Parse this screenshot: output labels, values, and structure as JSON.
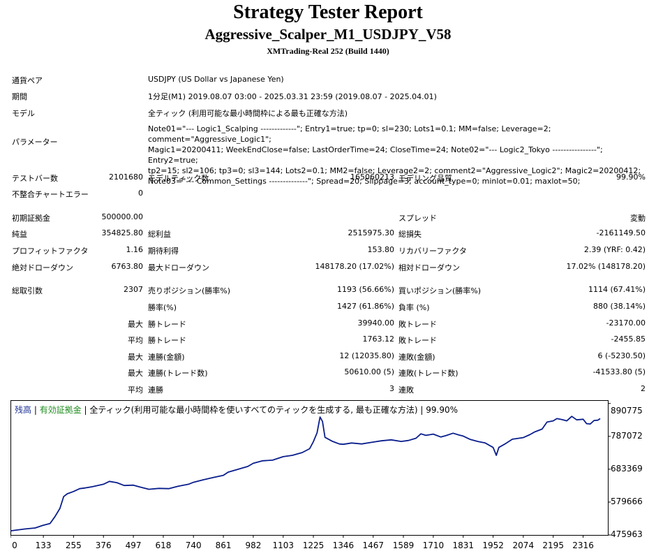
{
  "header": {
    "title": "Strategy Tester Report",
    "subtitle": "Aggressive_Scalper_M1_USDJPY_V58",
    "server": "XMTrading-Real 252 (Build 1440)"
  },
  "summary": {
    "symbol_label": "通貨ペア",
    "symbol_value": "USDJPY (US Dollar vs Japanese Yen)",
    "period_label": "期間",
    "period_value": "1分足(M1) 2019.08.07 03:00 - 2025.03.31 23:59 (2019.08.07 - 2025.04.01)",
    "model_label": "モデル",
    "model_value": "全ティック (利用可能な最小時間枠による最も正確な方法)",
    "params_label": "パラメーター",
    "params_value": "Note01=\"--- Logic1_Scalping -------------\"; Entry1=true; tp=0; sl=230; Lots1=0.1; MM=false; Leverage=2; comment=\"Aggressive_Logic1\";\nMagic1=20200411; WeekEndClose=false; LastOrderTime=24; CloseTime=24; Note02=\"--- Logic2_Tokyo ----------------\"; Entry2=true;\ntp2=15; sl2=106; tp3=0; sl3=144; Lots2=0.1; MM2=false; Leverage2=2; comment2=\"Aggressive_Logic2\"; Magic2=20200412;\nNote03=\"--- Common_Settings --------------\"; Spread=20; Slippage=3; account_type=0; minlot=0.01; maxlot=50;"
  },
  "stats": {
    "bars_label": "テストバー数",
    "bars_value": "2101680",
    "ticks_label": "モデルティック数",
    "ticks_value": "165060213",
    "quality_label": "モデリング品質",
    "quality_value": "99.90%",
    "mismatch_label": "不整合チャートエラー",
    "mismatch_value": "0",
    "deposit_label": "初期証拠金",
    "deposit_value": "500000.00",
    "spread_label": "スプレッド",
    "spread_value": "変動",
    "netprofit_label": "純益",
    "netprofit_value": "354825.80",
    "grossprofit_label": "総利益",
    "grossprofit_value": "2515975.30",
    "grossloss_label": "総損失",
    "grossloss_value": "-2161149.50",
    "pf_label": "プロフィットファクタ",
    "pf_value": "1.16",
    "payoff_label": "期待利得",
    "payoff_value": "153.80",
    "recovery_label": "リカバリーファクタ",
    "recovery_value": "2.39 (YRF: 0.42)",
    "absdd_label": "絶対ドローダウン",
    "absdd_value": "6763.80",
    "maxdd_label": "最大ドローダウン",
    "maxdd_value": "148178.20 (17.02%)",
    "reldd_label": "相対ドローダウン",
    "reldd_value": "17.02% (148178.20)",
    "trades_label": "総取引数",
    "trades_value": "2307",
    "short_label": "売りポジション(勝率%)",
    "short_value": "1193 (56.66%)",
    "long_label": "買いポジション(勝率%)",
    "long_value": "1114 (67.41%)",
    "winrate_label": "勝率(%)",
    "winrate_value": "1427 (61.86%)",
    "lossrate_label": "負率 (%)",
    "lossrate_value": "880 (38.14%)",
    "max_prefix": "最大",
    "avg_prefix": "平均",
    "largestwin_label": "勝トレード",
    "largestwin_value": "39940.00",
    "largestloss_label": "敗トレード",
    "largestloss_value": "-23170.00",
    "avgwin_label": "勝トレード",
    "avgwin_value": "1763.12",
    "avgloss_label": "敗トレード",
    "avgloss_value": "-2455.85",
    "consecwins_label": "連勝(金額)",
    "consecwins_value": "12 (12035.80)",
    "consecloss_label": "連敗(金額)",
    "consecloss_value": "6 (-5230.50)",
    "consecprofit_label": "連勝(トレード数)",
    "consecprofit_value": "50610.00 (5)",
    "consecloss2_label": "連敗(トレード数)",
    "consecloss2_value": "-41533.80 (5)",
    "avgconswin_label": "連勝",
    "avgconswin_value": "3",
    "avgconsloss_label": "連敗",
    "avgconsloss_value": "2"
  },
  "legend": {
    "balance": "残高",
    "sep1": " | ",
    "equity": "有効証拠金",
    "sep2": " | ",
    "rest": "全ティック(利用可能な最小時間枠を使いすべてのティックを生成する, 最も正確な方法) | 99.90%"
  },
  "colors": {
    "balance_line": "#0a1e8c",
    "balance_text": "#1e3296",
    "equity_text": "#1e8c1e"
  },
  "chart_data": {
    "type": "line",
    "title": "",
    "xlabel": "",
    "ylabel": "",
    "xlim": [
      0,
      2416
    ],
    "ylim": [
      475963,
      901128
    ],
    "x_ticks": [
      "0",
      "133",
      "255",
      "376",
      "497",
      "618",
      "740",
      "861",
      "982",
      "1103",
      "1225",
      "1346",
      "1467",
      "1589",
      "1710",
      "1831",
      "1952",
      "2074",
      "2195",
      "2316"
    ],
    "y_ticks": [
      "890775",
      "787072",
      "683369",
      "579666",
      "475963"
    ],
    "series": [
      {
        "name": "残高",
        "points": [
          [
            0,
            489000
          ],
          [
            60,
            495000
          ],
          [
            100,
            498000
          ],
          [
            130,
            506000
          ],
          [
            160,
            512000
          ],
          [
            180,
            534000
          ],
          [
            200,
            560000
          ],
          [
            215,
            597000
          ],
          [
            230,
            606000
          ],
          [
            255,
            613000
          ],
          [
            280,
            622000
          ],
          [
            300,
            624000
          ],
          [
            330,
            628000
          ],
          [
            376,
            636000
          ],
          [
            400,
            645000
          ],
          [
            430,
            641000
          ],
          [
            460,
            632000
          ],
          [
            497,
            633000
          ],
          [
            520,
            628000
          ],
          [
            560,
            620000
          ],
          [
            600,
            623000
          ],
          [
            640,
            622000
          ],
          [
            680,
            630000
          ],
          [
            720,
            636000
          ],
          [
            740,
            642000
          ],
          [
            780,
            650000
          ],
          [
            820,
            657000
          ],
          [
            861,
            664000
          ],
          [
            880,
            674000
          ],
          [
            920,
            683000
          ],
          [
            960,
            692000
          ],
          [
            982,
            702000
          ],
          [
            1020,
            710000
          ],
          [
            1060,
            712000
          ],
          [
            1103,
            723000
          ],
          [
            1140,
            727000
          ],
          [
            1180,
            736000
          ],
          [
            1210,
            748000
          ],
          [
            1225,
            770000
          ],
          [
            1240,
            798000
          ],
          [
            1252,
            848000
          ],
          [
            1262,
            834000
          ],
          [
            1272,
            784000
          ],
          [
            1300,
            772000
          ],
          [
            1330,
            763000
          ],
          [
            1346,
            762000
          ],
          [
            1380,
            766000
          ],
          [
            1420,
            763000
          ],
          [
            1467,
            769000
          ],
          [
            1500,
            773000
          ],
          [
            1540,
            776000
          ],
          [
            1580,
            771000
          ],
          [
            1610,
            774000
          ],
          [
            1640,
            781000
          ],
          [
            1660,
            795000
          ],
          [
            1680,
            790000
          ],
          [
            1710,
            794000
          ],
          [
            1740,
            785000
          ],
          [
            1760,
            789000
          ],
          [
            1790,
            797000
          ],
          [
            1815,
            791000
          ],
          [
            1831,
            788000
          ],
          [
            1860,
            777000
          ],
          [
            1890,
            771000
          ],
          [
            1920,
            766000
          ],
          [
            1952,
            752000
          ],
          [
            1965,
            727000
          ],
          [
            1975,
            752000
          ],
          [
            2000,
            763000
          ],
          [
            2030,
            778000
          ],
          [
            2074,
            783000
          ],
          [
            2100,
            792000
          ],
          [
            2120,
            801000
          ],
          [
            2150,
            810000
          ],
          [
            2170,
            832000
          ],
          [
            2195,
            836000
          ],
          [
            2210,
            843000
          ],
          [
            2230,
            840000
          ],
          [
            2250,
            836000
          ],
          [
            2270,
            850000
          ],
          [
            2290,
            839000
          ],
          [
            2316,
            841000
          ],
          [
            2330,
            827000
          ],
          [
            2345,
            826000
          ],
          [
            2360,
            837000
          ],
          [
            2375,
            838000
          ],
          [
            2385,
            843000
          ]
        ]
      }
    ]
  }
}
